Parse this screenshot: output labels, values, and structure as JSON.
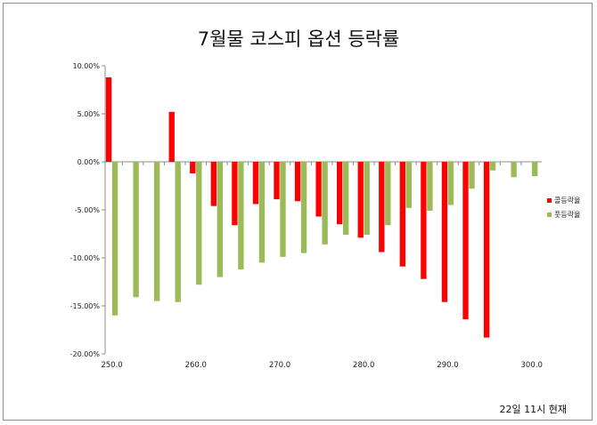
{
  "chart_data": {
    "type": "bar",
    "title": "7월물 코스피 옵션 등락률",
    "x": [
      250.0,
      252.5,
      255.0,
      257.5,
      260.0,
      262.5,
      265.0,
      267.5,
      270.0,
      272.5,
      275.0,
      277.5,
      280.0,
      282.5,
      285.0,
      287.5,
      290.0,
      292.5,
      295.0,
      297.5,
      300.0
    ],
    "xticks": [
      "250.0",
      "260.0",
      "270.0",
      "280.0",
      "290.0",
      "300.0"
    ],
    "xtick_values": [
      250.0,
      260.0,
      270.0,
      280.0,
      290.0,
      300.0
    ],
    "yticks": [
      "10.00%",
      "5.00%",
      "0.00%",
      "-5.00%",
      "-10.00%",
      "-15.00%",
      "-20.00%"
    ],
    "ytick_values": [
      10,
      5,
      0,
      -5,
      -10,
      -15,
      -20
    ],
    "ylim": [
      -20,
      10
    ],
    "xlim": [
      249.2,
      301.2
    ],
    "series": [
      {
        "name": "콜등락율",
        "color": "#ff0000",
        "values": [
          8.8,
          null,
          null,
          5.2,
          -1.2,
          -4.6,
          -6.6,
          -4.4,
          -3.9,
          -4.1,
          -5.7,
          -6.5,
          -7.9,
          -9.4,
          -10.9,
          -12.2,
          -14.6,
          -16.4,
          -18.3,
          null,
          null
        ]
      },
      {
        "name": "풋등락율",
        "color": "#9bbb59",
        "values": [
          -16.0,
          -14.1,
          -14.5,
          -14.6,
          -12.8,
          -12.0,
          -11.2,
          -10.5,
          -9.9,
          -9.5,
          -8.6,
          -7.6,
          -7.6,
          -6.6,
          -4.8,
          -5.1,
          -4.5,
          -2.8,
          -0.9,
          -1.6,
          -1.5
        ]
      }
    ]
  },
  "footnote": "22일 11시 현재"
}
